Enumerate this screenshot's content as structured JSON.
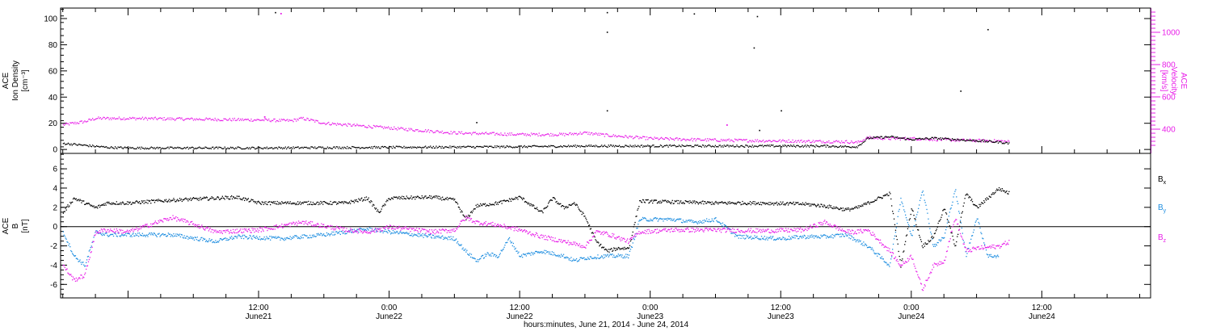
{
  "colors": {
    "black": "#000000",
    "magenta": "#e81ee8",
    "blue": "#1e8ee0",
    "frame": "#000000"
  },
  "xaxis": {
    "xlabel": "hours:minutes, June 21, 2014 - June 24, 2014",
    "range_hours": [
      -6.2,
      94.0
    ],
    "ticks": [
      {
        "h": 12,
        "line1": "12:00",
        "line2": "June21"
      },
      {
        "h": 24,
        "line1": "0:00",
        "line2": "June22"
      },
      {
        "h": 36,
        "line1": "12:00",
        "line2": "June22"
      },
      {
        "h": 48,
        "line1": "0:00",
        "line2": "June23"
      },
      {
        "h": 60,
        "line1": "12:00",
        "line2": "June23"
      },
      {
        "h": 72,
        "line1": "0:00",
        "line2": "June24"
      },
      {
        "h": 84,
        "line1": "12:00",
        "line2": "June24"
      }
    ]
  },
  "chart_data": [
    {
      "type": "scatter",
      "left_label_lines": [
        "ACE",
        "Ion Density",
        "[cm⁻³]"
      ],
      "right_label_lines": [
        "ACE",
        "Velocity",
        "[km/s]"
      ],
      "ylim_left": [
        -3,
        108
      ],
      "yticks_left": [
        0,
        20,
        40,
        60,
        80,
        100
      ],
      "ylim_right": [
        250,
        1150
      ],
      "yticks_right": [
        400,
        600,
        800,
        1000
      ],
      "series": [
        {
          "axis": "left",
          "color": "black",
          "points": [
            [
              -6,
              5
            ],
            [
              -4,
              3.5
            ],
            [
              -2,
              2
            ],
            [
              0,
              1.5
            ],
            [
              6,
              1.5
            ],
            [
              12,
              1.5
            ],
            [
              18,
              1.8
            ],
            [
              24,
              2
            ],
            [
              30,
              2.2
            ],
            [
              36,
              2.5
            ],
            [
              42,
              3
            ],
            [
              48,
              3
            ],
            [
              54,
              3
            ],
            [
              60,
              3
            ],
            [
              64,
              3
            ],
            [
              66,
              2.5
            ],
            [
              67,
              2.5
            ],
            [
              68,
              9
            ],
            [
              70,
              10
            ],
            [
              72,
              8
            ],
            [
              74,
              9
            ],
            [
              76,
              8
            ],
            [
              78,
              7
            ],
            [
              80,
              6
            ],
            [
              81,
              5
            ]
          ],
          "outliers": [
            [
              13.5,
              105
            ],
            [
              32,
              21
            ],
            [
              44,
              30
            ],
            [
              44,
              90
            ],
            [
              44,
              105
            ],
            [
              52,
              104
            ],
            [
              57.5,
              78
            ],
            [
              57.8,
              102
            ],
            [
              58,
              15
            ],
            [
              60,
              30
            ],
            [
              79,
              92
            ],
            [
              76.5,
              45
            ]
          ]
        },
        {
          "axis": "right",
          "color": "magenta",
          "points": [
            [
              -6,
              430
            ],
            [
              -4,
              450
            ],
            [
              -3,
              470
            ],
            [
              0,
              470
            ],
            [
              6,
              465
            ],
            [
              12,
              460
            ],
            [
              15,
              455
            ],
            [
              16,
              470
            ],
            [
              18,
              440
            ],
            [
              24,
              410
            ],
            [
              30,
              380
            ],
            [
              36,
              370
            ],
            [
              40,
              370
            ],
            [
              42,
              380
            ],
            [
              44,
              365
            ],
            [
              48,
              345
            ],
            [
              54,
              335
            ],
            [
              60,
              330
            ],
            [
              66,
              325
            ],
            [
              67,
              320
            ],
            [
              68,
              350
            ],
            [
              70,
              345
            ],
            [
              72,
              345
            ],
            [
              76,
              335
            ],
            [
              80,
              330
            ],
            [
              81,
              325
            ]
          ],
          "outliers": [
            [
              14,
              1120
            ],
            [
              55,
              430
            ],
            [
              12.5,
              480
            ]
          ]
        }
      ]
    },
    {
      "type": "scatter",
      "left_label_lines": [
        "ACE",
        "B",
        "[nT]"
      ],
      "ylim": [
        -7.4,
        7.6
      ],
      "yticks": [
        -6,
        -4,
        -2,
        0,
        2,
        4,
        6
      ],
      "series": [
        {
          "name": "Bx",
          "name_main": "B",
          "name_sub": "x",
          "color": "black",
          "points": [
            [
              -6,
              1.5
            ],
            [
              -5,
              3
            ],
            [
              -4,
              2.5
            ],
            [
              -3,
              2
            ],
            [
              -2,
              2.5
            ],
            [
              0,
              2.5
            ],
            [
              4,
              2.8
            ],
            [
              8,
              3
            ],
            [
              10,
              3.1
            ],
            [
              12,
              2.5
            ],
            [
              16,
              2.5
            ],
            [
              20,
              2.5
            ],
            [
              22,
              3
            ],
            [
              23,
              1.5
            ],
            [
              24,
              3
            ],
            [
              28,
              3.1
            ],
            [
              30,
              2.8
            ],
            [
              31,
              0.8
            ],
            [
              32,
              2.2
            ],
            [
              34,
              2.5
            ],
            [
              36,
              3.1
            ],
            [
              38,
              1.5
            ],
            [
              39,
              3
            ],
            [
              40,
              2
            ],
            [
              41,
              2.5
            ],
            [
              42,
              1
            ],
            [
              43,
              -1.5
            ],
            [
              44,
              -2.5
            ],
            [
              45,
              -2.2
            ],
            [
              46,
              -2.2
            ],
            [
              47,
              2.7
            ],
            [
              50,
              2.6
            ],
            [
              54,
              2.5
            ],
            [
              58,
              2.5
            ],
            [
              62,
              2.4
            ],
            [
              64,
              2.2
            ],
            [
              66,
              1.8
            ],
            [
              67,
              2
            ],
            [
              68,
              2.5
            ],
            [
              70,
              3.5
            ],
            [
              71,
              -4
            ],
            [
              72,
              2
            ],
            [
              73,
              -2
            ],
            [
              74,
              -1
            ],
            [
              75,
              2
            ],
            [
              76,
              -2
            ],
            [
              77,
              3.5
            ],
            [
              78,
              2
            ],
            [
              80,
              4
            ],
            [
              81,
              3.5
            ]
          ]
        },
        {
          "name": "By",
          "name_main": "B",
          "name_sub": "y",
          "color": "blue",
          "points": [
            [
              -6,
              -0.5
            ],
            [
              -5,
              -3
            ],
            [
              -4,
              -4
            ],
            [
              -3,
              -0.5
            ],
            [
              -2,
              -0.8
            ],
            [
              0,
              -0.8
            ],
            [
              4,
              -0.8
            ],
            [
              8,
              -1.5
            ],
            [
              10,
              -1
            ],
            [
              14,
              -1.2
            ],
            [
              18,
              -0.8
            ],
            [
              22,
              -0.2
            ],
            [
              24,
              -0.5
            ],
            [
              28,
              -1
            ],
            [
              30,
              -1.2
            ],
            [
              31,
              -2.5
            ],
            [
              32,
              -3.5
            ],
            [
              33,
              -2.8
            ],
            [
              34,
              -3
            ],
            [
              35,
              -1.2
            ],
            [
              36,
              -3
            ],
            [
              38,
              -2.5
            ],
            [
              40,
              -3
            ],
            [
              41,
              -3.5
            ],
            [
              42,
              -3.2
            ],
            [
              44,
              -3
            ],
            [
              46,
              -3
            ],
            [
              47,
              0.8
            ],
            [
              50,
              0.8
            ],
            [
              52,
              0.5
            ],
            [
              54,
              0.8
            ],
            [
              56,
              -1
            ],
            [
              60,
              -1.2
            ],
            [
              62,
              -1
            ],
            [
              64,
              -1
            ],
            [
              66,
              -0.8
            ],
            [
              68,
              -2
            ],
            [
              69,
              -3
            ],
            [
              70,
              -4
            ],
            [
              71,
              3
            ],
            [
              72,
              -1
            ],
            [
              73,
              4
            ],
            [
              74,
              -2
            ],
            [
              75,
              -1
            ],
            [
              76,
              4
            ],
            [
              77,
              -3
            ],
            [
              78,
              1
            ],
            [
              79,
              -3
            ],
            [
              80,
              -3
            ]
          ]
        },
        {
          "name": "Bz",
          "name_main": "B",
          "name_sub": "z",
          "color": "magenta",
          "points": [
            [
              -6,
              -4
            ],
            [
              -5,
              -5.5
            ],
            [
              -4,
              -5
            ],
            [
              -3,
              -0.5
            ],
            [
              -2,
              -0.3
            ],
            [
              0,
              -0.5
            ],
            [
              4,
              1
            ],
            [
              6,
              0.3
            ],
            [
              8,
              -0.5
            ],
            [
              12,
              -0.3
            ],
            [
              16,
              0.5
            ],
            [
              20,
              -0.3
            ],
            [
              22,
              -0.5
            ],
            [
              24,
              0
            ],
            [
              28,
              -0.5
            ],
            [
              30,
              -0.3
            ],
            [
              31,
              1
            ],
            [
              32,
              0.5
            ],
            [
              34,
              0.2
            ],
            [
              36,
              -0.3
            ],
            [
              38,
              -1
            ],
            [
              40,
              -1.5
            ],
            [
              42,
              -2
            ],
            [
              43,
              -0.5
            ],
            [
              44,
              -0.7
            ],
            [
              46,
              -1.5
            ],
            [
              47,
              -0.5
            ],
            [
              50,
              -0.3
            ],
            [
              54,
              -0.3
            ],
            [
              58,
              -0.4
            ],
            [
              62,
              -0.3
            ],
            [
              64,
              0.5
            ],
            [
              66,
              -0.5
            ],
            [
              67,
              -0.5
            ],
            [
              68,
              -0.3
            ],
            [
              70,
              -2.5
            ],
            [
              71,
              -4
            ],
            [
              72,
              -3
            ],
            [
              73,
              -6.5
            ],
            [
              74,
              -4
            ],
            [
              75,
              -3.5
            ],
            [
              76,
              1
            ],
            [
              77,
              -2.5
            ],
            [
              78,
              -2.2
            ],
            [
              80,
              -2
            ],
            [
              81,
              -1.5
            ]
          ]
        }
      ]
    }
  ]
}
